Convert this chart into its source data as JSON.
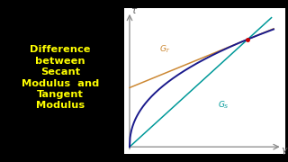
{
  "title_lines": [
    "Difference",
    "between",
    "Secant",
    "Modulus  and",
    "Tangent",
    "Modulus"
  ],
  "title_color": "#FFFF00",
  "title_bg": "#000000",
  "plot_bg": "#FFFFFF",
  "curve_color": "#1a1a8c",
  "tangent_color": "#cc8833",
  "secant_color": "#009999",
  "point_color": "#cc0000",
  "xlabel": "γ",
  "ylabel": "τ"
}
